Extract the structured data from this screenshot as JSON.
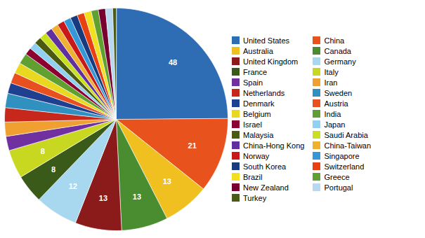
{
  "chart_data": {
    "type": "pie",
    "categories": [
      "United States",
      "China",
      "Australia",
      "Canada",
      "United Kingdom",
      "Germany",
      "France",
      "Italy",
      "Spain",
      "Iran",
      "Netherlands",
      "Sweden",
      "Denmark",
      "Austria",
      "Belgium",
      "India",
      "Israel",
      "Japan",
      "Malaysia",
      "Saudi Arabia",
      "China-Hong Kong",
      "China-Taiwan",
      "Norway",
      "Singapore",
      "South Korea",
      "Switzerland",
      "Brazil",
      "Greece",
      "New Zealand",
      "Portugal",
      "Turkey"
    ],
    "values": [
      48,
      21,
      13,
      13,
      13,
      12,
      8,
      8,
      4,
      4,
      4,
      4,
      3,
      3,
      3,
      3,
      2,
      2,
      2,
      2,
      2,
      2,
      2,
      2,
      2,
      2,
      2,
      2,
      2,
      2,
      1
    ],
    "value_labels": [
      "48",
      "21",
      "13",
      "13",
      "13",
      "12",
      "8",
      "8",
      null,
      null,
      null,
      null,
      null,
      null,
      null,
      null,
      null,
      null,
      null,
      null,
      null,
      null,
      null,
      null,
      null,
      null,
      null,
      null,
      null,
      null,
      null
    ],
    "colors": [
      "#2e6db4",
      "#e8521c",
      "#f0c020",
      "#4a8c30",
      "#8b1a1a",
      "#a8d8f0",
      "#3a5a1a",
      "#c8d820",
      "#7030a0",
      "#f0a030",
      "#c8281c",
      "#3090c0",
      "#1f4090",
      "#e85020",
      "#e8d820",
      "#60a030",
      "#8b0030",
      "#90d0f0",
      "#4a5a10",
      "#c8e020",
      "#6030a0",
      "#f0b030",
      "#c81818",
      "#3498d8",
      "#1a3a80",
      "#e84010",
      "#f0e020",
      "#60a030",
      "#780030",
      "#b8d8f0",
      "#4a5a18"
    ],
    "data_labels": true,
    "legend": "right"
  }
}
